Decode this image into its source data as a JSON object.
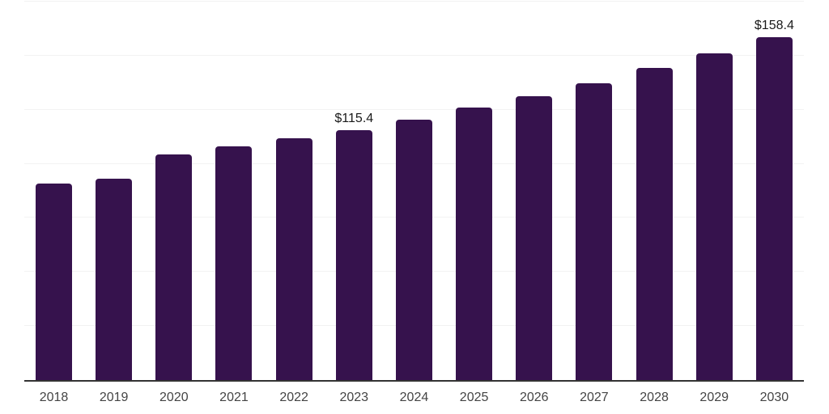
{
  "chart_data": {
    "type": "bar",
    "title": "",
    "xlabel": "",
    "ylabel": "",
    "categories": [
      "2018",
      "2019",
      "2020",
      "2021",
      "2022",
      "2023",
      "2024",
      "2025",
      "2026",
      "2027",
      "2028",
      "2029",
      "2030"
    ],
    "values": [
      90.8,
      93.0,
      104.2,
      107.9,
      111.7,
      115.4,
      120.5,
      126.0,
      131.4,
      137.4,
      144.2,
      151.2,
      158.4
    ],
    "data_labels": {
      "2023": "$115.4",
      "2030": "$158.4"
    },
    "ylim": [
      0,
      175
    ],
    "gridline_step": 25,
    "grid": true,
    "legend": false,
    "colors": {
      "bar": "#36124D",
      "axis": "#333333",
      "gridline": "#f2f2f2",
      "tick_label": "#444444",
      "data_label": "#1a1a1a",
      "background": "#ffffff"
    }
  }
}
